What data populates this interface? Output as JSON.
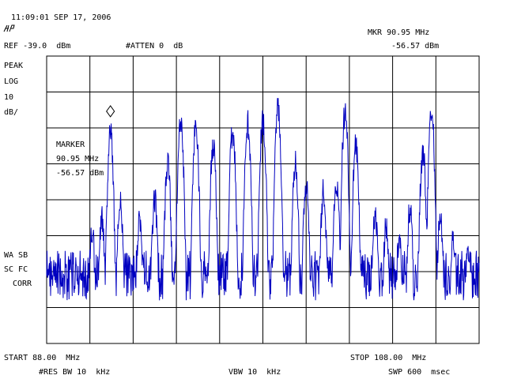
{
  "header": {
    "timestamp": "11:09:01 SEP 17, 2006",
    "logo_text": "hp",
    "ref_level": "REF -39.0  dBm",
    "atten": "#ATTEN 0  dB",
    "marker_readout_freq": "MKR 90.95 MHz",
    "marker_readout_level": "-56.57 dBm"
  },
  "left_annotations": {
    "detector": "PEAK",
    "scale": "LOG",
    "scale_value": "10",
    "scale_unit": "dB/",
    "wa_sb": "WA SB",
    "sc_fc": "SC FC",
    "corr": "CORR"
  },
  "marker_box": {
    "title": "MARKER",
    "freq": "90.95 MHz",
    "level": "-56.57 dBm"
  },
  "footer": {
    "start": "START 88.00  MHz",
    "stop": "STOP 108.00  MHz",
    "res_bw": "#RES BW 10  kHz",
    "vbw": "VBW 10  kHz",
    "sweep": "SWP 600  msec"
  },
  "colors": {
    "trace": "#0000c0",
    "grid": "#000000",
    "background": "#ffffff"
  },
  "chart_data": {
    "type": "line",
    "x_start_mhz": 88.0,
    "x_stop_mhz": 108.0,
    "ref_level_dbm": -39.0,
    "db_per_div": 10,
    "marker": {
      "freq_mhz": 90.95,
      "level_dbm": -56.57
    },
    "peaks": [
      {
        "freq_mhz": 88.3,
        "level_dbm": -97
      },
      {
        "freq_mhz": 88.7,
        "level_dbm": -100
      },
      {
        "freq_mhz": 89.4,
        "level_dbm": -103
      },
      {
        "freq_mhz": 90.1,
        "level_dbm": -84
      },
      {
        "freq_mhz": 90.55,
        "level_dbm": -80
      },
      {
        "freq_mhz": 90.95,
        "level_dbm": -56.57
      },
      {
        "freq_mhz": 91.4,
        "level_dbm": -75
      },
      {
        "freq_mhz": 92.3,
        "level_dbm": -80
      },
      {
        "freq_mhz": 93.0,
        "level_dbm": -75
      },
      {
        "freq_mhz": 93.6,
        "level_dbm": -65
      },
      {
        "freq_mhz": 94.2,
        "level_dbm": -54
      },
      {
        "freq_mhz": 94.9,
        "level_dbm": -55
      },
      {
        "freq_mhz": 95.7,
        "level_dbm": -60
      },
      {
        "freq_mhz": 96.6,
        "level_dbm": -56
      },
      {
        "freq_mhz": 97.3,
        "level_dbm": -54
      },
      {
        "freq_mhz": 98.0,
        "level_dbm": -53
      },
      {
        "freq_mhz": 98.7,
        "level_dbm": -50
      },
      {
        "freq_mhz": 99.5,
        "level_dbm": -65
      },
      {
        "freq_mhz": 100.0,
        "level_dbm": -70
      },
      {
        "freq_mhz": 100.8,
        "level_dbm": -73
      },
      {
        "freq_mhz": 101.4,
        "level_dbm": -70
      },
      {
        "freq_mhz": 101.8,
        "level_dbm": -51
      },
      {
        "freq_mhz": 102.3,
        "level_dbm": -60
      },
      {
        "freq_mhz": 103.2,
        "level_dbm": -79
      },
      {
        "freq_mhz": 103.7,
        "level_dbm": -82
      },
      {
        "freq_mhz": 104.3,
        "level_dbm": -86
      },
      {
        "freq_mhz": 104.8,
        "level_dbm": -78
      },
      {
        "freq_mhz": 105.4,
        "level_dbm": -62
      },
      {
        "freq_mhz": 105.8,
        "level_dbm": -51
      },
      {
        "freq_mhz": 106.2,
        "level_dbm": -80
      },
      {
        "freq_mhz": 106.8,
        "level_dbm": -85
      },
      {
        "freq_mhz": 107.5,
        "level_dbm": -88
      }
    ],
    "noise_floor_dbm": -100,
    "grid": true
  }
}
